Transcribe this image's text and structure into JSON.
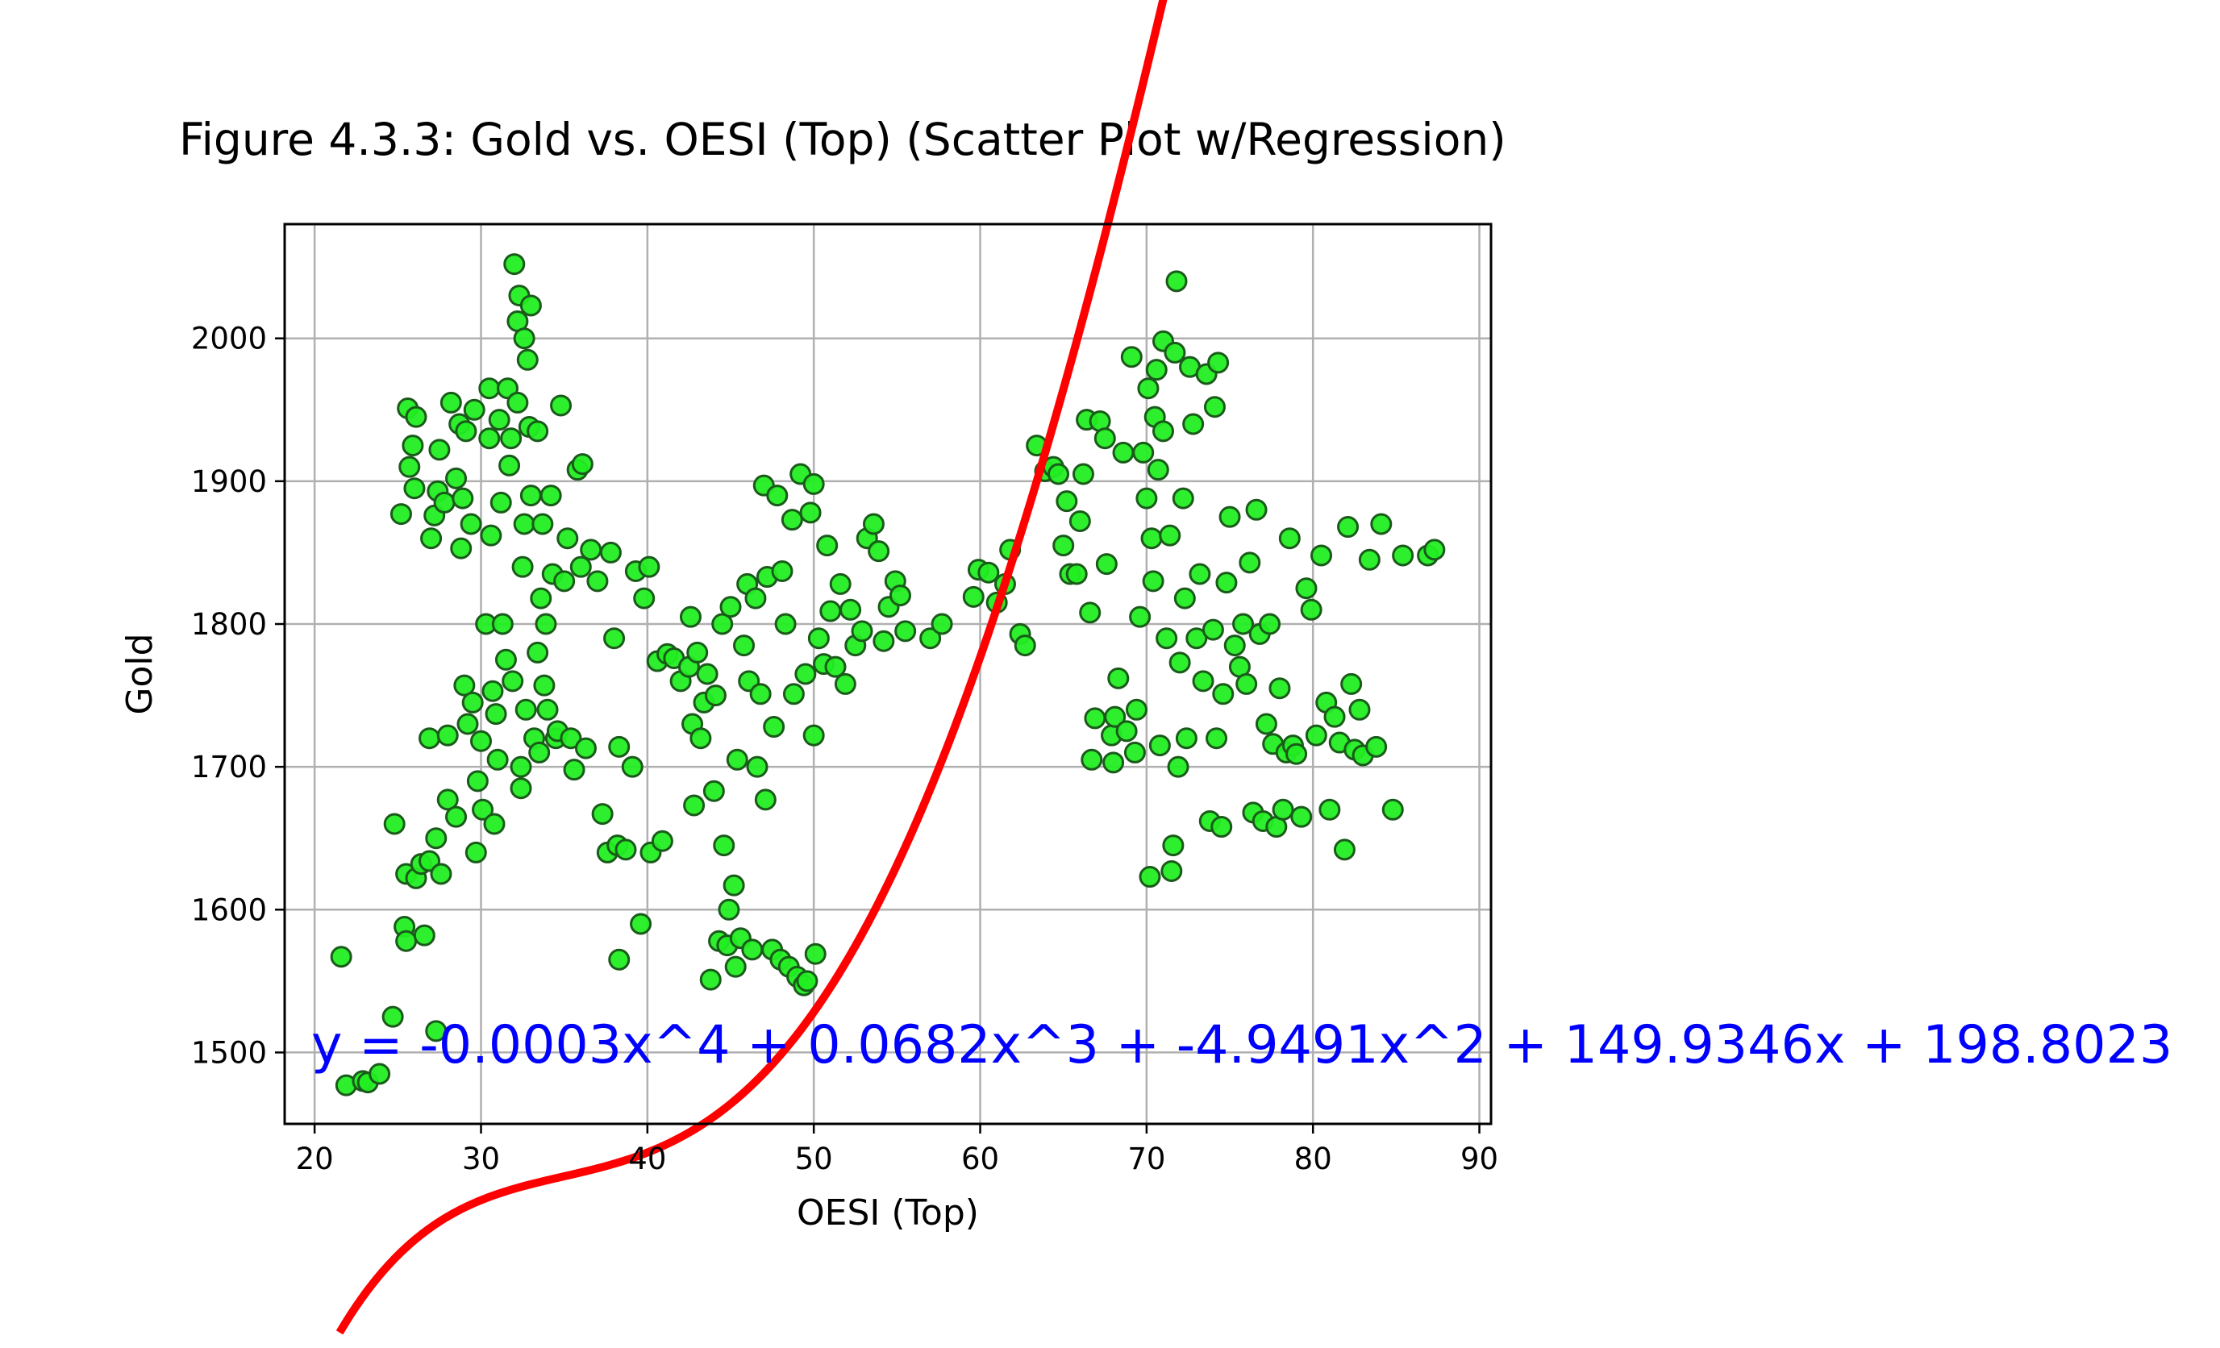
{
  "chart_data": {
    "type": "scatter",
    "title": "Figure 4.3.3: Gold vs. OESI (Top) (Scatter Plot w/Regression)",
    "xlabel": "OESI (Top)",
    "ylabel": "Gold",
    "xlim": [
      18.2,
      90.7
    ],
    "ylim": [
      1450,
      2080
    ],
    "xticks": [
      20,
      30,
      40,
      50,
      60,
      70,
      80,
      90
    ],
    "yticks": [
      1500,
      1600,
      1700,
      1800,
      1900,
      2000
    ],
    "grid": true,
    "legend": "none",
    "equation_text": "y = -0.0003x^4 + 0.0682x^3 + -4.9491x^2 + 149.9346x + 198.8023",
    "regression": {
      "coefficients": [
        -0.0003,
        0.0682,
        -4.9491,
        149.9346,
        198.8023
      ],
      "x_range": [
        21.5,
        87.5
      ],
      "color": "#ff0000"
    },
    "series": [
      {
        "color": "#22ee22",
        "edge_color": "#1a5a1a",
        "points": [
          [
            21.6,
            1567
          ],
          [
            21.9,
            1477
          ],
          [
            22.9,
            1480
          ],
          [
            23.2,
            1479
          ],
          [
            23.9,
            1485
          ],
          [
            24.7,
            1525
          ],
          [
            24.8,
            1660
          ],
          [
            25.2,
            1877
          ],
          [
            25.4,
            1588
          ],
          [
            25.5,
            1578
          ],
          [
            25.5,
            1625
          ],
          [
            25.6,
            1951
          ],
          [
            25.7,
            1910
          ],
          [
            25.9,
            1925
          ],
          [
            26.0,
            1895
          ],
          [
            26.1,
            1622
          ],
          [
            26.1,
            1945
          ],
          [
            26.4,
            1632
          ],
          [
            26.6,
            1582
          ],
          [
            26.9,
            1720
          ],
          [
            26.9,
            1634
          ],
          [
            27.0,
            1860
          ],
          [
            27.2,
            1876
          ],
          [
            27.3,
            1650
          ],
          [
            27.3,
            1515
          ],
          [
            27.4,
            1893
          ],
          [
            27.5,
            1922
          ],
          [
            27.6,
            1625
          ],
          [
            27.8,
            1885
          ],
          [
            28.0,
            1722
          ],
          [
            28.0,
            1677
          ],
          [
            28.2,
            1955
          ],
          [
            28.5,
            1902
          ],
          [
            28.5,
            1665
          ],
          [
            28.7,
            1940
          ],
          [
            28.8,
            1853
          ],
          [
            28.9,
            1888
          ],
          [
            29.0,
            1757
          ],
          [
            29.1,
            1935
          ],
          [
            29.2,
            1730
          ],
          [
            29.4,
            1870
          ],
          [
            29.5,
            1745
          ],
          [
            29.6,
            1950
          ],
          [
            29.7,
            1640
          ],
          [
            29.8,
            1690
          ],
          [
            30.0,
            1718
          ],
          [
            30.1,
            1670
          ],
          [
            30.3,
            1800
          ],
          [
            30.5,
            1930
          ],
          [
            30.5,
            1965
          ],
          [
            30.6,
            1862
          ],
          [
            30.7,
            1753
          ],
          [
            30.8,
            1660
          ],
          [
            30.9,
            1737
          ],
          [
            31.0,
            1705
          ],
          [
            31.1,
            1943
          ],
          [
            31.2,
            1885
          ],
          [
            31.3,
            1800
          ],
          [
            31.5,
            1775
          ],
          [
            31.6,
            1965
          ],
          [
            31.7,
            1911
          ],
          [
            31.8,
            1930
          ],
          [
            31.9,
            1760
          ],
          [
            32.0,
            2052
          ],
          [
            32.2,
            1955
          ],
          [
            32.2,
            2012
          ],
          [
            32.3,
            2030
          ],
          [
            32.4,
            1700
          ],
          [
            32.4,
            1685
          ],
          [
            32.5,
            1840
          ],
          [
            32.6,
            1870
          ],
          [
            32.6,
            2000
          ],
          [
            32.7,
            1740
          ],
          [
            32.8,
            1985
          ],
          [
            32.9,
            1938
          ],
          [
            33.0,
            1890
          ],
          [
            33.0,
            2023
          ],
          [
            33.2,
            1720
          ],
          [
            33.4,
            1935
          ],
          [
            33.4,
            1780
          ],
          [
            33.5,
            1710
          ],
          [
            33.6,
            1818
          ],
          [
            33.7,
            1870
          ],
          [
            33.8,
            1757
          ],
          [
            33.9,
            1800
          ],
          [
            34.0,
            1740
          ],
          [
            34.2,
            1890
          ],
          [
            34.3,
            1835
          ],
          [
            34.5,
            1720
          ],
          [
            34.6,
            1725
          ],
          [
            34.8,
            1953
          ],
          [
            35.0,
            1830
          ],
          [
            35.2,
            1860
          ],
          [
            35.4,
            1720
          ],
          [
            35.6,
            1698
          ],
          [
            35.8,
            1908
          ],
          [
            36.0,
            1840
          ],
          [
            36.1,
            1912
          ],
          [
            36.3,
            1713
          ],
          [
            36.6,
            1852
          ],
          [
            37.0,
            1830
          ],
          [
            37.3,
            1667
          ],
          [
            37.6,
            1640
          ],
          [
            37.8,
            1850
          ],
          [
            38.0,
            1790
          ],
          [
            38.2,
            1645
          ],
          [
            38.3,
            1565
          ],
          [
            38.3,
            1714
          ],
          [
            38.7,
            1642
          ],
          [
            39.1,
            1700
          ],
          [
            39.3,
            1837
          ],
          [
            39.6,
            1590
          ],
          [
            39.8,
            1818
          ],
          [
            40.1,
            1840
          ],
          [
            40.2,
            1640
          ],
          [
            40.6,
            1774
          ],
          [
            40.9,
            1648
          ],
          [
            41.2,
            1779
          ],
          [
            41.6,
            1776
          ],
          [
            42.0,
            1760
          ],
          [
            42.5,
            1770
          ],
          [
            42.6,
            1805
          ],
          [
            42.7,
            1730
          ],
          [
            42.8,
            1673
          ],
          [
            43.0,
            1780
          ],
          [
            43.2,
            1720
          ],
          [
            43.4,
            1745
          ],
          [
            43.6,
            1765
          ],
          [
            43.8,
            1551
          ],
          [
            44.0,
            1683
          ],
          [
            44.1,
            1750
          ],
          [
            44.3,
            1578
          ],
          [
            44.5,
            1800
          ],
          [
            44.6,
            1645
          ],
          [
            44.8,
            1575
          ],
          [
            44.9,
            1600
          ],
          [
            45.0,
            1812
          ],
          [
            45.2,
            1617
          ],
          [
            45.3,
            1560
          ],
          [
            45.4,
            1705
          ],
          [
            45.6,
            1580
          ],
          [
            45.8,
            1785
          ],
          [
            46.0,
            1828
          ],
          [
            46.1,
            1760
          ],
          [
            46.3,
            1572
          ],
          [
            46.5,
            1818
          ],
          [
            46.6,
            1700
          ],
          [
            46.8,
            1751
          ],
          [
            47.0,
            1897
          ],
          [
            47.1,
            1677
          ],
          [
            47.2,
            1833
          ],
          [
            47.5,
            1572
          ],
          [
            47.6,
            1728
          ],
          [
            47.8,
            1890
          ],
          [
            48.0,
            1565
          ],
          [
            48.1,
            1837
          ],
          [
            48.3,
            1800
          ],
          [
            48.5,
            1560
          ],
          [
            48.7,
            1873
          ],
          [
            48.8,
            1751
          ],
          [
            49.0,
            1553
          ],
          [
            49.2,
            1905
          ],
          [
            49.4,
            1547
          ],
          [
            49.5,
            1765
          ],
          [
            49.6,
            1550
          ],
          [
            49.8,
            1878
          ],
          [
            50.0,
            1898
          ],
          [
            50.0,
            1722
          ],
          [
            50.1,
            1569
          ],
          [
            50.3,
            1790
          ],
          [
            50.6,
            1772
          ],
          [
            50.8,
            1855
          ],
          [
            51.0,
            1809
          ],
          [
            51.3,
            1770
          ],
          [
            51.6,
            1828
          ],
          [
            51.9,
            1758
          ],
          [
            52.2,
            1810
          ],
          [
            52.5,
            1785
          ],
          [
            52.9,
            1795
          ],
          [
            53.2,
            1860
          ],
          [
            53.6,
            1870
          ],
          [
            53.9,
            1851
          ],
          [
            54.2,
            1788
          ],
          [
            54.5,
            1812
          ],
          [
            54.9,
            1830
          ],
          [
            55.2,
            1820
          ],
          [
            55.5,
            1795
          ],
          [
            57.0,
            1790
          ],
          [
            57.7,
            1800
          ],
          [
            59.6,
            1819
          ],
          [
            59.9,
            1838
          ],
          [
            60.5,
            1836
          ],
          [
            61.0,
            1815
          ],
          [
            61.5,
            1828
          ],
          [
            61.8,
            1852
          ],
          [
            62.4,
            1793
          ],
          [
            62.7,
            1785
          ],
          [
            63.4,
            1925
          ],
          [
            63.9,
            1907
          ],
          [
            64.4,
            1910
          ],
          [
            64.7,
            1905
          ],
          [
            65.0,
            1855
          ],
          [
            65.2,
            1886
          ],
          [
            65.4,
            1835
          ],
          [
            65.8,
            1835
          ],
          [
            66.0,
            1872
          ],
          [
            66.2,
            1905
          ],
          [
            66.4,
            1943
          ],
          [
            66.6,
            1808
          ],
          [
            66.7,
            1705
          ],
          [
            66.9,
            1734
          ],
          [
            67.2,
            1942
          ],
          [
            67.5,
            1930
          ],
          [
            67.6,
            1842
          ],
          [
            67.9,
            1722
          ],
          [
            68.0,
            1703
          ],
          [
            68.1,
            1735
          ],
          [
            68.3,
            1762
          ],
          [
            68.6,
            1920
          ],
          [
            68.8,
            1725
          ],
          [
            69.1,
            1987
          ],
          [
            69.3,
            1710
          ],
          [
            69.4,
            1740
          ],
          [
            69.6,
            1805
          ],
          [
            69.8,
            1920
          ],
          [
            70.0,
            1888
          ],
          [
            70.1,
            1965
          ],
          [
            70.2,
            1623
          ],
          [
            70.3,
            1860
          ],
          [
            70.4,
            1830
          ],
          [
            70.5,
            1945
          ],
          [
            70.6,
            1978
          ],
          [
            70.7,
            1908
          ],
          [
            70.8,
            1715
          ],
          [
            71.0,
            1998
          ],
          [
            71.0,
            1935
          ],
          [
            71.2,
            1790
          ],
          [
            71.4,
            1862
          ],
          [
            71.5,
            1627
          ],
          [
            71.6,
            1645
          ],
          [
            71.7,
            1990
          ],
          [
            71.8,
            2040
          ],
          [
            71.9,
            1700
          ],
          [
            72.0,
            1773
          ],
          [
            72.2,
            1888
          ],
          [
            72.3,
            1818
          ],
          [
            72.4,
            1720
          ],
          [
            72.6,
            1980
          ],
          [
            72.8,
            1940
          ],
          [
            73.0,
            1790
          ],
          [
            73.2,
            1835
          ],
          [
            73.4,
            1760
          ],
          [
            73.6,
            1975
          ],
          [
            73.8,
            1662
          ],
          [
            74.0,
            1796
          ],
          [
            74.1,
            1952
          ],
          [
            74.2,
            1720
          ],
          [
            74.3,
            1983
          ],
          [
            74.5,
            1658
          ],
          [
            74.6,
            1751
          ],
          [
            74.8,
            1829
          ],
          [
            75.0,
            1875
          ],
          [
            75.3,
            1785
          ],
          [
            75.6,
            1770
          ],
          [
            75.8,
            1800
          ],
          [
            76.0,
            1758
          ],
          [
            76.2,
            1843
          ],
          [
            76.4,
            1668
          ],
          [
            76.6,
            1880
          ],
          [
            76.8,
            1793
          ],
          [
            77.0,
            1662
          ],
          [
            77.2,
            1730
          ],
          [
            77.4,
            1800
          ],
          [
            77.6,
            1716
          ],
          [
            77.8,
            1658
          ],
          [
            78.0,
            1755
          ],
          [
            78.2,
            1670
          ],
          [
            78.4,
            1710
          ],
          [
            78.6,
            1860
          ],
          [
            78.8,
            1715
          ],
          [
            79.0,
            1709
          ],
          [
            79.3,
            1665
          ],
          [
            79.6,
            1825
          ],
          [
            79.9,
            1810
          ],
          [
            80.2,
            1722
          ],
          [
            80.5,
            1848
          ],
          [
            80.8,
            1745
          ],
          [
            81.0,
            1670
          ],
          [
            81.3,
            1735
          ],
          [
            81.6,
            1717
          ],
          [
            81.9,
            1642
          ],
          [
            82.1,
            1868
          ],
          [
            82.3,
            1758
          ],
          [
            82.5,
            1712
          ],
          [
            82.8,
            1740
          ],
          [
            83.0,
            1708
          ],
          [
            83.4,
            1845
          ],
          [
            83.8,
            1714
          ],
          [
            84.1,
            1870
          ],
          [
            84.8,
            1670
          ],
          [
            85.4,
            1848
          ],
          [
            86.9,
            1848
          ],
          [
            87.3,
            1852
          ]
        ]
      }
    ]
  }
}
